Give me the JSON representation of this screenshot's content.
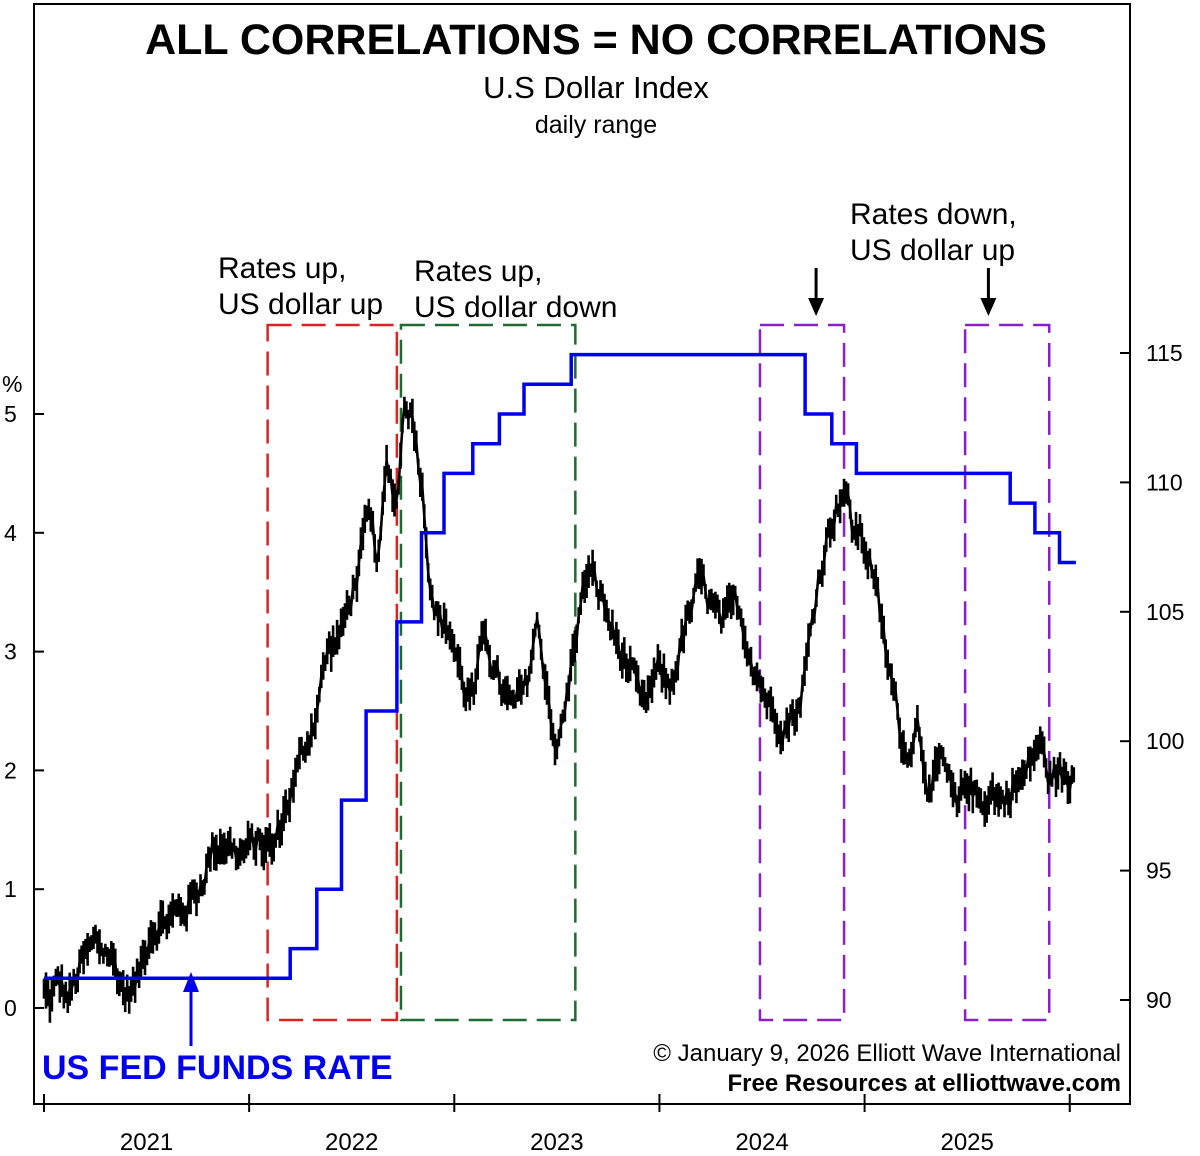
{
  "chart_data": {
    "type": "line",
    "title": "ALL CORRELATIONS = NO CORRELATIONS",
    "subtitle": "U.S Dollar Index",
    "subtitle2": "daily range",
    "left_axis": {
      "unit_label": "%",
      "range": [
        -0.7,
        5.9
      ],
      "ticks": [
        "0",
        "1",
        "2",
        "3",
        "4",
        "5"
      ]
    },
    "right_axis": {
      "range": [
        88.5,
        116.5
      ],
      "ticks": [
        "90",
        "95",
        "100",
        "105",
        "110",
        "115"
      ]
    },
    "x_axis": {
      "range": [
        2021.0,
        2026.05
      ],
      "ticks": [
        2021,
        2022,
        2023,
        2024,
        2025,
        2026
      ],
      "labels": [
        "2021",
        "2022",
        "2023",
        "2024",
        "2025"
      ]
    },
    "series": [
      {
        "name": "US FED FUNDS RATE",
        "axis": "left",
        "color": "#0000ee",
        "step_points": [
          [
            2021.0,
            0.25
          ],
          [
            2022.2,
            0.25
          ],
          [
            2022.2,
            0.5
          ],
          [
            2022.33,
            0.5
          ],
          [
            2022.33,
            1.0
          ],
          [
            2022.45,
            1.0
          ],
          [
            2022.45,
            1.75
          ],
          [
            2022.57,
            1.75
          ],
          [
            2022.57,
            2.5
          ],
          [
            2022.72,
            2.5
          ],
          [
            2022.72,
            3.25
          ],
          [
            2022.84,
            3.25
          ],
          [
            2022.84,
            4.0
          ],
          [
            2022.95,
            4.0
          ],
          [
            2022.95,
            4.5
          ],
          [
            2023.09,
            4.5
          ],
          [
            2023.09,
            4.75
          ],
          [
            2023.22,
            4.75
          ],
          [
            2023.22,
            5.0
          ],
          [
            2023.34,
            5.0
          ],
          [
            2023.34,
            5.25
          ],
          [
            2023.57,
            5.25
          ],
          [
            2023.57,
            5.5
          ],
          [
            2024.71,
            5.5
          ],
          [
            2024.71,
            5.0
          ],
          [
            2024.84,
            5.0
          ],
          [
            2024.84,
            4.75
          ],
          [
            2024.96,
            4.75
          ],
          [
            2024.96,
            4.5
          ],
          [
            2025.71,
            4.5
          ],
          [
            2025.71,
            4.25
          ],
          [
            2025.83,
            4.25
          ],
          [
            2025.83,
            4.0
          ],
          [
            2025.95,
            4.0
          ],
          [
            2025.95,
            3.75
          ],
          [
            2026.03,
            3.75
          ]
        ]
      },
      {
        "name": "U.S Dollar Index",
        "axis": "right",
        "color": "#000000",
        "x": [
          2021.0,
          2021.03,
          2021.07,
          2021.12,
          2021.18,
          2021.25,
          2021.32,
          2021.4,
          2021.45,
          2021.52,
          2021.6,
          2021.68,
          2021.75,
          2021.82,
          2021.88,
          2021.95,
          2022.05,
          2022.12,
          2022.18,
          2022.25,
          2022.32,
          2022.38,
          2022.45,
          2022.52,
          2022.58,
          2022.63,
          2022.67,
          2022.72,
          2022.76,
          2022.8,
          2022.84,
          2022.88,
          2022.92,
          2022.98,
          2023.05,
          2023.1,
          2023.15,
          2023.2,
          2023.28,
          2023.35,
          2023.4,
          2023.45,
          2023.5,
          2023.55,
          2023.6,
          2023.65,
          2023.72,
          2023.78,
          2023.85,
          2023.92,
          2024.0,
          2024.05,
          2024.12,
          2024.2,
          2024.3,
          2024.38,
          2024.46,
          2024.55,
          2024.62,
          2024.68,
          2024.72,
          2024.78,
          2024.85,
          2024.9,
          2024.94,
          2024.98,
          2025.04,
          2025.1,
          2025.15,
          2025.2,
          2025.26,
          2025.32,
          2025.38,
          2025.45,
          2025.5,
          2025.56,
          2025.62,
          2025.68,
          2025.72,
          2025.78,
          2025.85,
          2025.9,
          2025.95,
          2026.0,
          2026.02
        ],
        "values": [
          90.3,
          89.9,
          90.7,
          90.0,
          91.3,
          92.2,
          91.8,
          90.2,
          90.6,
          92.8,
          93.1,
          93.5,
          94.2,
          95.8,
          96.2,
          95.6,
          96.1,
          95.8,
          97.5,
          99.2,
          101.0,
          103.4,
          104.2,
          106.3,
          108.5,
          107.0,
          110.4,
          109.3,
          113.4,
          112.5,
          110.2,
          106.5,
          104.7,
          104.3,
          102.0,
          101.7,
          104.5,
          102.5,
          101.2,
          102.0,
          104.6,
          102.3,
          99.5,
          101.7,
          104.6,
          106.6,
          105.5,
          104.0,
          102.8,
          101.2,
          102.8,
          102.0,
          104.2,
          106.2,
          104.4,
          105.3,
          103.0,
          101.1,
          100.8,
          101.3,
          103.2,
          106.6,
          108.9,
          109.8,
          108.2,
          108.0,
          106.7,
          103.5,
          101.5,
          99.5,
          100.8,
          98.0,
          99.2,
          97.2,
          98.6,
          97.6,
          98.1,
          97.6,
          98.3,
          98.6,
          100.0,
          98.6,
          98.8,
          98.2,
          99.0
        ]
      }
    ],
    "annotations": [
      {
        "lines": [
          "Rates up,",
          "US dollar up"
        ],
        "x_range": [
          2022.09,
          2022.72
        ],
        "color": "#dd2222"
      },
      {
        "lines": [
          "Rates up,",
          "US dollar down"
        ],
        "x_range": [
          2022.74,
          2023.59
        ],
        "color": "#1e6b34"
      },
      {
        "lines": [
          "Rates down,",
          "US dollar up"
        ],
        "arrows_at": [
          2024.9,
          2025.74
        ]
      },
      {
        "x_range": [
          2024.49,
          2024.9
        ],
        "color": "#8a20c8"
      },
      {
        "x_range": [
          2025.49,
          2025.9
        ],
        "color": "#8a20c8"
      }
    ],
    "legend_label": "US FED FUNDS RATE",
    "grid": false
  },
  "credits": {
    "copyright": "© January 9, 2026  Elliott Wave International",
    "resources": "Free Resources at elliottwave.com"
  }
}
